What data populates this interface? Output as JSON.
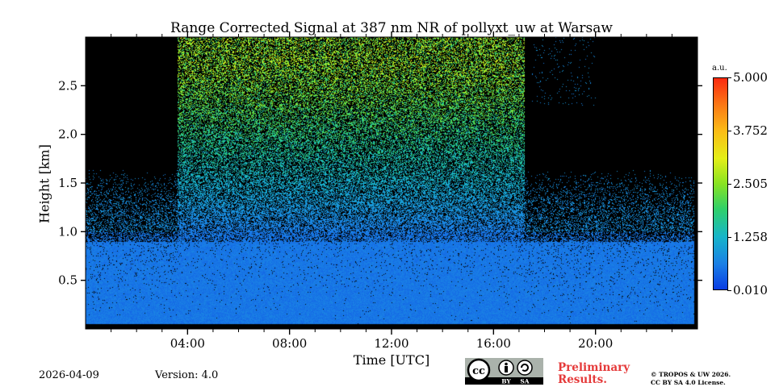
{
  "chart_data": {
    "type": "heatmap",
    "title": "Range Corrected Signal at 387 nm NR of pollyxt_uw at Warsaw",
    "xlabel": "Time [UTC]",
    "ylabel": "Height [km]",
    "x_unit": "hours UTC",
    "xlim": [
      0,
      24
    ],
    "ylim": [
      0,
      3.0
    ],
    "x_ticks": [
      4,
      8,
      12,
      16,
      20
    ],
    "x_tick_labels": [
      "04:00",
      "08:00",
      "12:00",
      "16:00",
      "20:00"
    ],
    "y_ticks": [
      0.5,
      1.0,
      1.5,
      2.0,
      2.5
    ],
    "y_tick_labels": [
      "0.5",
      "1.0",
      "1.5",
      "2.0",
      "2.5"
    ],
    "colorbar": {
      "unit": "a.u.",
      "range": [
        0.01,
        5.0
      ],
      "ticks": [
        0.01,
        1.258,
        2.505,
        3.752,
        5.0
      ],
      "tick_labels": [
        "0.010",
        "1.258",
        "2.505",
        "3.752",
        "5.000"
      ],
      "colormap": [
        "#0a3de4",
        "#1a7fe6",
        "#17b5c9",
        "#2fd06a",
        "#88e322",
        "#e4ef18",
        "#fbbc16",
        "#fb7a15",
        "#fb2a0f"
      ]
    },
    "features": [
      {
        "name": "strong-signal-region",
        "t_start": 4.0,
        "t_end": 17.0,
        "h_start": 1.5,
        "h_end": 3.0
      },
      {
        "name": "low-signal-gap",
        "t_start": 17.5,
        "t_end": 20.0,
        "h_start": 2.3,
        "h_end": 3.0
      },
      {
        "name": "no-data-end",
        "t_start": 23.85,
        "t_end": 24.0,
        "h_start": 0.0,
        "h_end": 3.0
      }
    ]
  },
  "footer": {
    "date": "2026-04-09",
    "version": "Version: 4.0",
    "license_badge": {
      "cc": "cc",
      "by": "BY",
      "sa": "SA"
    },
    "preliminary": [
      "Preliminary",
      "Results."
    ],
    "copyright": [
      "© TROPOS & UW 2026.",
      "CC BY SA 4.0 License."
    ]
  },
  "colors": {
    "preliminary": "#e53a3a",
    "background": "#ffffff"
  }
}
